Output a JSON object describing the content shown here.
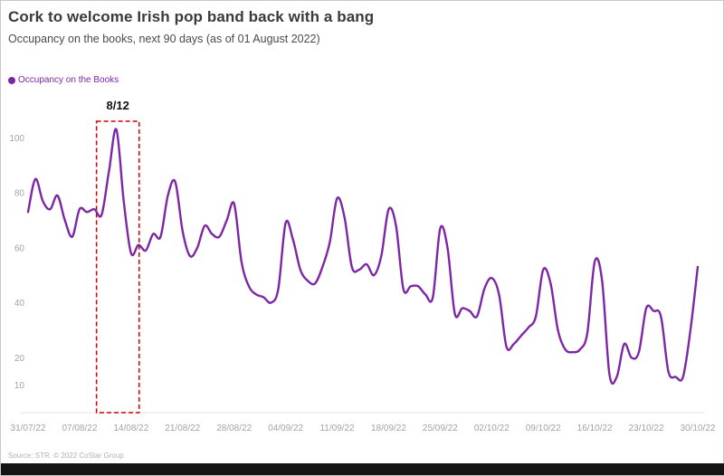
{
  "header": {
    "title": "Cork to welcome Irish pop band back with a bang",
    "subtitle": "Occupancy on the books, next 90 days (as of 01 August 2022)"
  },
  "legend": {
    "label": "Occupancy on the Books",
    "color": "#7d26a6"
  },
  "chart_data": {
    "type": "line",
    "title": "Cork to welcome Irish pop band back with a bang",
    "subtitle": "Occupancy on the books, next 90 days (as of 01 August 2022)",
    "xlabel": "",
    "ylabel": "",
    "grid": false,
    "legend_position": "top-left",
    "x_tick_labels": [
      "31/07/22",
      "07/08/22",
      "14/08/22",
      "21/08/22",
      "28/08/22",
      "04/09/22",
      "11/09/22",
      "18/09/22",
      "25/09/22",
      "02/10/22",
      "09/10/22",
      "16/10/22",
      "23/10/22",
      "30/10/22"
    ],
    "x_tick_days": [
      0,
      7,
      14,
      21,
      28,
      35,
      42,
      49,
      56,
      63,
      70,
      77,
      84,
      91
    ],
    "x_range_days": [
      0,
      91
    ],
    "ylim": [
      0,
      107
    ],
    "yticks": [
      10,
      20,
      40,
      60,
      80,
      100
    ],
    "series": [
      {
        "name": "Occupancy on the Books",
        "color": "#7d26a6",
        "values": [
          73,
          85,
          77,
          74,
          79,
          70,
          64,
          74,
          73,
          74,
          72,
          88,
          103,
          77,
          58,
          61,
          59,
          65,
          64,
          79,
          84,
          66,
          57,
          60,
          68,
          65,
          64,
          70,
          76,
          55,
          46,
          43,
          42,
          40,
          45,
          69,
          63,
          52,
          48,
          47,
          53,
          62,
          78,
          71,
          53,
          52,
          54,
          50,
          57,
          74,
          68,
          45,
          46,
          46,
          43,
          42,
          67,
          60,
          36,
          38,
          37,
          35,
          45,
          49,
          43,
          24,
          25,
          28,
          31,
          35,
          52,
          47,
          30,
          23,
          22,
          23,
          29,
          55,
          48,
          14,
          13,
          25,
          20,
          22,
          38,
          37,
          35,
          15,
          13,
          13,
          30,
          53
        ]
      }
    ],
    "annotation": {
      "label": "8/12",
      "box_from_day": 9.3,
      "box_to_day": 15.1,
      "box_color": "#d40000"
    }
  },
  "footer": {
    "source": "Source: STR. © 2022 CoStar Group"
  }
}
